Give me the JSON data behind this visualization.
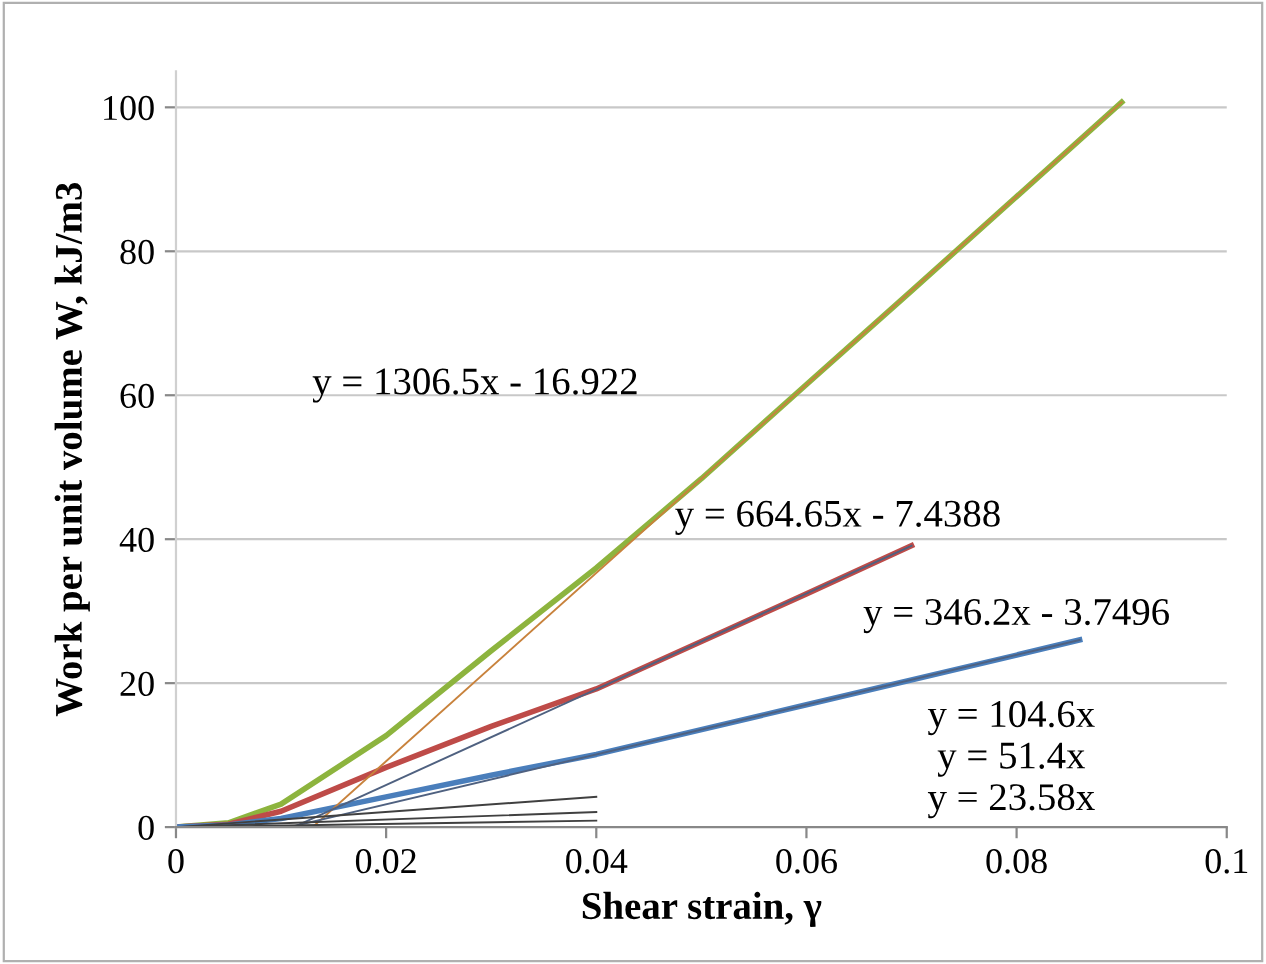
{
  "chart_data": {
    "type": "line",
    "xlabel": "Shear strain, γ",
    "ylabel": "Work per unit volume W, kJ/m3",
    "xlim": [
      0,
      0.1
    ],
    "ylim": [
      0,
      105
    ],
    "xticks": [
      0,
      0.02,
      0.04,
      0.06,
      0.08,
      0.1
    ],
    "yticks": [
      0,
      20,
      40,
      60,
      80,
      100
    ],
    "grid": "y",
    "legend": false,
    "marker": "none",
    "line_style": "solid",
    "series": [
      {
        "color": "#8db43e",
        "x": [
          0,
          0.005,
          0.01,
          0.02,
          0.03,
          0.04,
          0.05,
          0.06,
          0.07,
          0.08,
          0.09
        ],
        "values": [
          0,
          0.6,
          3.2,
          12.7,
          24.5,
          36,
          48.4,
          61.5,
          74.5,
          87.6,
          100.7
        ]
      },
      {
        "color": "#be4b48",
        "x": [
          0,
          0.005,
          0.01,
          0.02,
          0.03,
          0.04,
          0.05,
          0.06,
          0.07
        ],
        "values": [
          0,
          0.4,
          2.2,
          8.3,
          14,
          19.2,
          25.8,
          32.4,
          39.1
        ]
      },
      {
        "color": "#4a7ebb",
        "x": [
          0,
          0.005,
          0.01,
          0.02,
          0.03,
          0.04,
          0.06,
          0.08,
          0.086
        ],
        "values": [
          0,
          0.3,
          1.2,
          4.2,
          7.2,
          10.1,
          17.0,
          23.9,
          26.0
        ]
      },
      {
        "color": "#c8823c",
        "x": [
          0.013,
          0.09
        ],
        "values": [
          0,
          100.7
        ]
      },
      {
        "color": "#4f6180",
        "x": [
          0.0112,
          0.07
        ],
        "values": [
          0,
          39.1
        ]
      },
      {
        "color": "#4f6180",
        "x": [
          0.0108,
          0.086
        ],
        "values": [
          0,
          26.0
        ]
      },
      {
        "color": "#404040",
        "x": [
          0,
          0.04
        ],
        "values": [
          0,
          4.2
        ]
      },
      {
        "color": "#404040",
        "x": [
          0,
          0.04
        ],
        "values": [
          0,
          2.1
        ]
      },
      {
        "color": "#404040",
        "x": [
          0,
          0.04
        ],
        "values": [
          0,
          0.9
        ]
      }
    ],
    "annotations": [
      "y = 1306.5x - 16.922",
      "y = 664.65x - 7.4388",
      "y = 346.2x - 3.7496",
      "y = 104.6x",
      "y = 51.4x",
      "y = 23.58x"
    ]
  }
}
